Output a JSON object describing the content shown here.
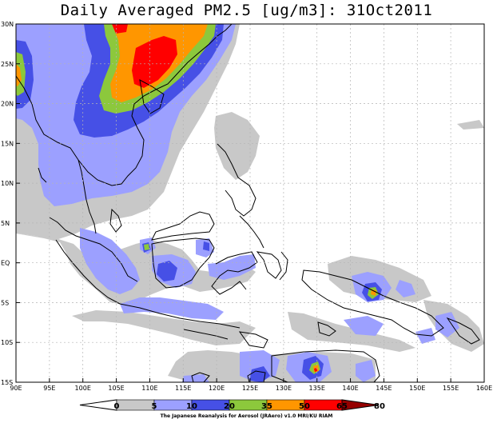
{
  "title": "Daily Averaged PM2.5 [ug/m3]: 31Oct2011",
  "credit": "The Japanese Reanalysis for Aerosol (JRAero) v1.0 MRI/KU RIAM",
  "map": {
    "lon_range": [
      90,
      160
    ],
    "lat_range": [
      -15,
      30
    ],
    "grid": true,
    "x_ticks": [
      "90E",
      "95E",
      "100E",
      "105E",
      "110E",
      "115E",
      "120E",
      "125E",
      "130E",
      "135E",
      "140E",
      "145E",
      "150E",
      "155E",
      "160E"
    ],
    "y_ticks": [
      "30N",
      "25N",
      "20N",
      "15N",
      "10N",
      "5N",
      "EQ",
      "5S",
      "10S",
      "15S"
    ]
  },
  "colorbar": {
    "levels": [
      "0",
      "5",
      "10",
      "20",
      "35",
      "50",
      "65",
      "80"
    ],
    "colors": [
      "#ffffff",
      "#c8c8c8",
      "#9ca0ff",
      "#4650e6",
      "#8cc83c",
      "#ff9600",
      "#ff0000",
      "#960000"
    ]
  },
  "fill_colors": {
    "gray": "#c8c8c8",
    "light_blue": "#9ca0ff",
    "blue": "#4650e6",
    "green": "#8cc83c",
    "orange": "#ff9600",
    "red": "#ff0000",
    "dark_red": "#960000"
  }
}
